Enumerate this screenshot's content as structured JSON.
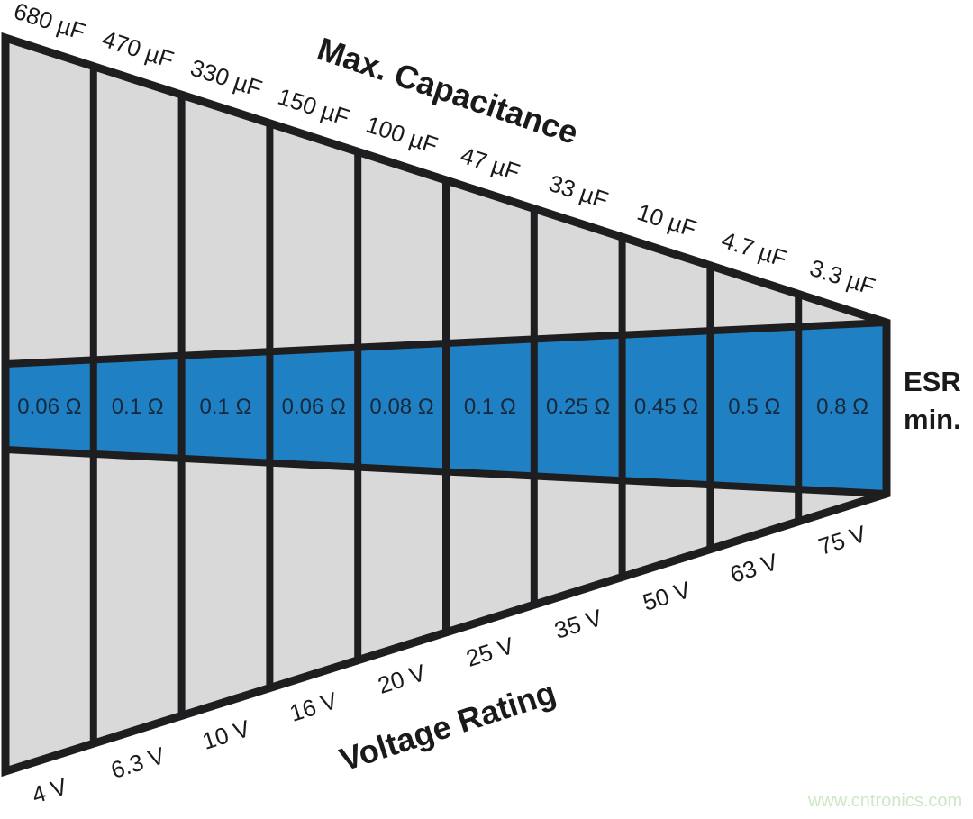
{
  "titles": {
    "top": "Max. Capacitance",
    "bottom": "Voltage Rating"
  },
  "esr_axis": {
    "line1": "ESR",
    "line2": "min."
  },
  "watermark": "www.cntronics.com",
  "colors": {
    "panel_gray": "#d9d9d9",
    "band_blue": "#1f81c4",
    "line_black": "#1e1e20",
    "esr_text": "#15283c",
    "label_black": "#1a1a1a",
    "watermark_green": "#cde7c5"
  },
  "chart_data": {
    "type": "table",
    "title": "Max. Capacitance",
    "xlabel": "Voltage Rating",
    "ylabel": "ESR min.",
    "legend_position": "none",
    "grid": false,
    "categories": [
      "4 V",
      "6.3 V",
      "10 V",
      "16 V",
      "20 V",
      "25 V",
      "35 V",
      "50 V",
      "63 V",
      "75 V"
    ],
    "series": [
      {
        "name": "Max. Capacitance",
        "values": [
          "680 µF",
          "470 µF",
          "330 µF",
          "150 µF",
          "100 µF",
          "47 µF",
          "33 µF",
          "10 µF",
          "4.7 µF",
          "3.3 µF"
        ]
      },
      {
        "name": "ESR min.",
        "values": [
          "0.06 Ω",
          "0.1 Ω",
          "0.1 Ω",
          "0.06 Ω",
          "0.08 Ω",
          "0.1 Ω",
          "0.25 Ω",
          "0.45 Ω",
          "0.5 Ω",
          "0.8 Ω"
        ]
      }
    ],
    "columns": [
      {
        "voltage": "4 V",
        "max_capacitance": "680 µF",
        "esr_min": "0.06 Ω"
      },
      {
        "voltage": "6.3 V",
        "max_capacitance": "470 µF",
        "esr_min": "0.1 Ω"
      },
      {
        "voltage": "10 V",
        "max_capacitance": "330 µF",
        "esr_min": "0.1 Ω"
      },
      {
        "voltage": "16 V",
        "max_capacitance": "150 µF",
        "esr_min": "0.06 Ω"
      },
      {
        "voltage": "20 V",
        "max_capacitance": "100 µF",
        "esr_min": "0.08 Ω"
      },
      {
        "voltage": "25 V",
        "max_capacitance": "47 µF",
        "esr_min": "0.1 Ω"
      },
      {
        "voltage": "35 V",
        "max_capacitance": "33 µF",
        "esr_min": "0.25 Ω"
      },
      {
        "voltage": "50 V",
        "max_capacitance": "10 µF",
        "esr_min": "0.45 Ω"
      },
      {
        "voltage": "63 V",
        "max_capacitance": "4.7 µF",
        "esr_min": "0.5 Ω"
      },
      {
        "voltage": "75 V",
        "max_capacitance": "3.3 µF",
        "esr_min": "0.8 Ω"
      }
    ]
  }
}
